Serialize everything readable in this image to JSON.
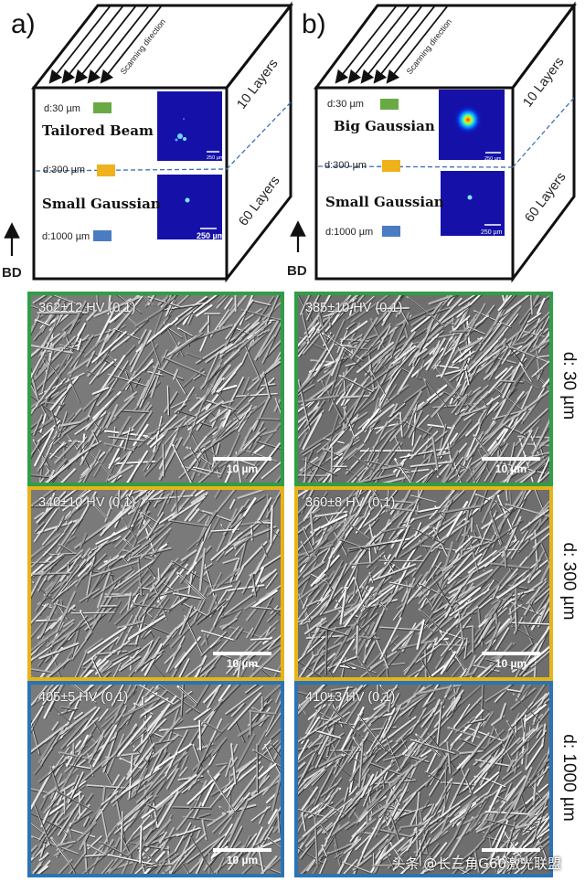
{
  "panels": {
    "a": {
      "label": "a)",
      "scanning_direction": "Scanning direction",
      "layers_top": "10 Layers",
      "layers_bottom": "60 Layers",
      "bd": "BD",
      "d30": "d:30 µm",
      "d300": "d:300 µm",
      "d1000": "d:1000 µm",
      "beam_top": "Tailored Beam",
      "beam_bottom": "Small Gaussian",
      "scale_top": "250 µm",
      "scale_bottom": "250 µm"
    },
    "b": {
      "label": "b)",
      "scanning_direction": "Scanning direction",
      "layers_top": "10 Layers",
      "layers_bottom": "60 Layers",
      "bd": "BD",
      "d30": "d:30 µm",
      "d300": "d:300 µm",
      "d1000": "d:1000 µm",
      "beam_top": "Big Gaussian",
      "beam_bottom": "Small Gaussian",
      "scale_top": "250 µm",
      "scale_bottom": "250 µm"
    }
  },
  "sem_rows": [
    {
      "depth_label": "d: 30 µm",
      "border_color": "#2e9f46",
      "left_hv": "362±12 HV (0,1)",
      "right_hv": "385±10 HV (0,1)",
      "scale": "10 µm"
    },
    {
      "depth_label": "d: 300 µm",
      "border_color": "#e7b416",
      "left_hv": "340±10 HV (0,1)",
      "right_hv": "360±8 HV (0,1)",
      "scale": "10 µm"
    },
    {
      "depth_label": "d: 1000 µm",
      "border_color": "#2b73b5",
      "left_hv": "405±5 HV (0,1)",
      "right_hv": "410±3 HV (0,1)",
      "scale": "10 µm"
    }
  ],
  "marker_colors": {
    "d30": "#6aaa45",
    "d300": "#f0b21c",
    "d1000": "#4a7cc2"
  },
  "watermark": "头条 @长三角G60激光联盟"
}
